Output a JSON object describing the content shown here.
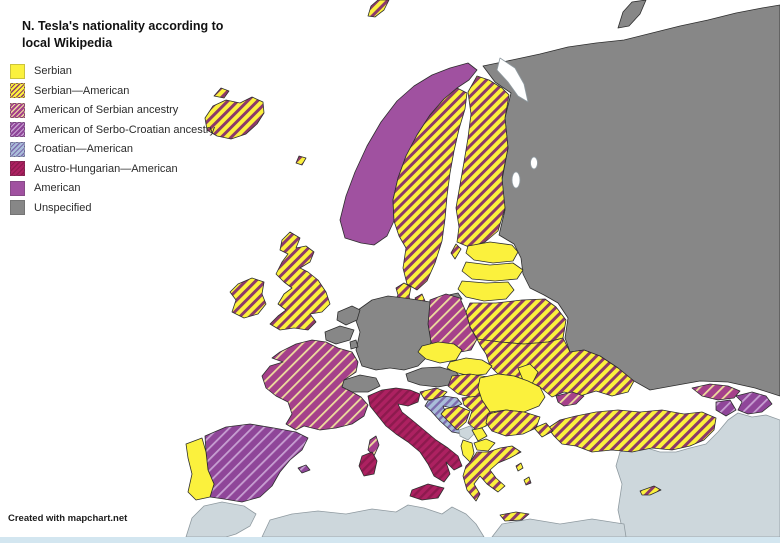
{
  "header": {
    "title_line1": "N. Tesla's nationality according to",
    "title_line2": "local Wikipedia"
  },
  "legend": {
    "items": [
      {
        "key": "serbian",
        "label": "Serbian"
      },
      {
        "key": "serbian_american",
        "label": "Serbian—American"
      },
      {
        "key": "american_serbian_ancestry",
        "label": "American of Serbian ancestry"
      },
      {
        "key": "american_serbocroatian_ancestry",
        "label": "American of Serbo-Croatian ancestry"
      },
      {
        "key": "croatian_american",
        "label": "Croatian—American"
      },
      {
        "key": "austro_hungarian_american",
        "label": "Austro-Hungarian—American"
      },
      {
        "key": "american",
        "label": "American"
      },
      {
        "key": "unspecified",
        "label": "Unspecified"
      }
    ]
  },
  "palette": {
    "serbian": {
      "type": "solid",
      "color": "#fbf13d"
    },
    "serbian_american": {
      "type": "hatch",
      "base": "#fbf13d",
      "stripe": "#8c3a69",
      "period": 7,
      "stripeWidth": 3
    },
    "american_serbian_ancestry": {
      "type": "hatch",
      "base": "#a5408a",
      "stripe": "#eedd9c",
      "period": 8,
      "stripeWidth": 1.8
    },
    "american_serbocroatian_ancestry": {
      "type": "hatch",
      "base": "#8f4699",
      "stripe": "#c79fd2",
      "period": 8,
      "stripeWidth": 1.8
    },
    "croatian_american": {
      "type": "hatch",
      "base": "#a9bdd9",
      "stripe": "#7c6cae",
      "period": 6,
      "stripeWidth": 2.4
    },
    "austro_hungarian_american": {
      "type": "hatch",
      "base": "#ad2161",
      "stripe": "#8d1a4e",
      "period": 6,
      "stripeWidth": 2.4
    },
    "american": {
      "type": "solid",
      "color": "#a051a0"
    },
    "unspecified": {
      "type": "solid",
      "color": "#878787"
    },
    "no_data": {
      "type": "solid",
      "color": "#cdd7dc"
    },
    "sea": "#ffffff",
    "bottom_strip": "#d3e6f0",
    "border": "#2e2e2e",
    "border_light": "#8f9aa0"
  },
  "map": {
    "regions": {
      "iceland": "serbian_american",
      "svalbard": "serbian_american",
      "faroe": "serbian_american",
      "norway": "american",
      "sweden": "serbian_american",
      "finland": "serbian_american",
      "denmark": "serbian_american",
      "estonia": "serbian",
      "latvia": "serbian",
      "lithuania": "serbian",
      "kaliningrad": "unspecified",
      "russia": "unspecified",
      "poland": "american_serbian_ancestry",
      "belarus": "serbian_american",
      "ukraine": "serbian_american",
      "crimea": "american_serbian_ancestry",
      "moldova": "serbian",
      "czechia": "serbian",
      "slovakia": "serbian",
      "austria": "unspecified",
      "germany": "unspecified",
      "netherlands": "unspecified",
      "belgium": "unspecified",
      "luxembourg": "unspecified",
      "switzerland": "unspecified",
      "france": "american_serbian_ancestry",
      "uk": "serbian_american",
      "ireland": "serbian_american",
      "spain": "american_serbocroatian_ancestry",
      "portugal": "serbian",
      "italy": "austro_hungarian_american",
      "slovenia": "serbian_american",
      "croatia": "croatian_american",
      "bosnia": "serbian_american",
      "serbia": "serbian_american",
      "montenegro": "no_data",
      "kosovo": "serbian",
      "north_macedonia": "serbian",
      "albania": "serbian",
      "greece": "serbian_american",
      "bulgaria": "serbian_american",
      "romania": "serbian",
      "hungary": "serbian_american",
      "turkey": "serbian_american",
      "cyprus": "serbian_american",
      "georgia": "american_serbian_ancestry",
      "armenia": "american_serbocroatian_ancestry",
      "azerbaijan": "american_serbocroatian_ancestry",
      "middle_east": "no_data",
      "north_africa": "no_data"
    }
  },
  "attribution": {
    "text": "Created with mapchart.net"
  }
}
